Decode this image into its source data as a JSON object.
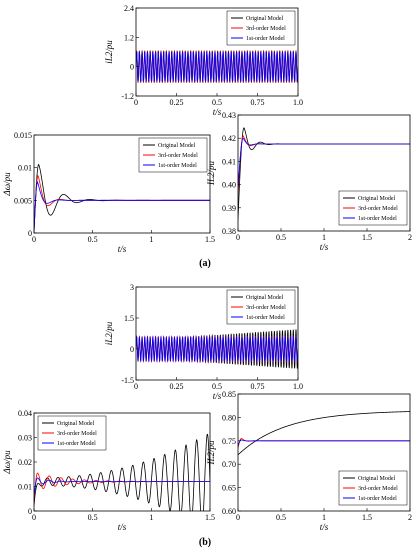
{
  "figure": {
    "label_a": "(a)",
    "label_b": "(b)"
  },
  "legend_entries": [
    "Original Model",
    "3rd-order Model",
    "1st-order Model"
  ],
  "chart_data": [
    {
      "id": "a1",
      "type": "line",
      "xlabel": "t/s",
      "ylabel": "iL2/pu",
      "xlim": [
        0,
        1
      ],
      "ylim": [
        -1.2,
        2.4
      ],
      "xticks": [
        "0",
        "0.25",
        "0.5",
        "0.75",
        "1.0"
      ],
      "yticks": [
        "-1.2",
        "0",
        "1.2",
        "2.4"
      ],
      "legend": "top-right",
      "series": [
        {
          "name": "Original Model",
          "color": "#000000",
          "signal": {
            "kind": "osc",
            "offset": 0.0,
            "amp": 0.65,
            "freq": 60,
            "decay": 0
          }
        },
        {
          "name": "3rd-order Model",
          "color": "#ff0000",
          "signal": {
            "kind": "osc",
            "offset": 0.0,
            "amp": 0.63,
            "freq": 60,
            "decay": 0
          }
        },
        {
          "name": "1st-order Model",
          "color": "#0000ff",
          "signal": {
            "kind": "osc",
            "offset": 0.0,
            "amp": 0.6,
            "freq": 60,
            "decay": 0
          }
        }
      ]
    },
    {
      "id": "a2",
      "type": "line",
      "xlabel": "t/s",
      "ylabel": "Δω/pu",
      "xlim": [
        0,
        1.5
      ],
      "ylim": [
        0,
        0.015
      ],
      "xticks": [
        "0",
        "0.5",
        "1",
        "1.5"
      ],
      "yticks": [
        "0",
        "0.005",
        "0.01",
        "0.015"
      ],
      "legend": "top-right",
      "series": [
        {
          "name": "Original Model",
          "color": "#000000",
          "signal": {
            "kind": "damp",
            "final": 0.005,
            "start": 0.0,
            "peak_t": 0.04,
            "peak": 0.0105,
            "osc_amp": 0.003,
            "osc_f": 4.5,
            "tau": 0.12
          }
        },
        {
          "name": "3rd-order Model",
          "color": "#ff0000",
          "signal": {
            "kind": "damp",
            "final": 0.005,
            "start": 0.0,
            "peak_t": 0.035,
            "peak": 0.0088,
            "osc_amp": 0.0015,
            "osc_f": 5,
            "tau": 0.06
          }
        },
        {
          "name": "1st-order Model",
          "color": "#0000ff",
          "signal": {
            "kind": "damp",
            "final": 0.005,
            "start": 0.0,
            "peak_t": 0.03,
            "peak": 0.0078,
            "osc_amp": 0.001,
            "osc_f": 5,
            "tau": 0.05
          }
        }
      ]
    },
    {
      "id": "a3",
      "type": "line",
      "xlabel": "t/s",
      "ylabel": "IL2/pu",
      "xlim": [
        0,
        2
      ],
      "ylim": [
        0.38,
        0.43
      ],
      "xticks": [
        "0",
        "0.5",
        "1",
        "1.5",
        "2"
      ],
      "yticks": [
        "0.38",
        "0.39",
        "0.40",
        "0.41",
        "0.42",
        "0.43"
      ],
      "legend": "bottom-right",
      "series": [
        {
          "name": "Original Model",
          "color": "#000000",
          "signal": {
            "kind": "damp",
            "final": 0.4175,
            "start": 0.385,
            "peak_t": 0.07,
            "peak": 0.4245,
            "osc_amp": 0.004,
            "osc_f": 5,
            "tau": 0.09
          }
        },
        {
          "name": "3rd-order Model",
          "color": "#ff0000",
          "signal": {
            "kind": "damp",
            "final": 0.4175,
            "start": 0.395,
            "peak_t": 0.06,
            "peak": 0.421,
            "osc_amp": 0.002,
            "osc_f": 5,
            "tau": 0.06
          }
        },
        {
          "name": "1st-order Model",
          "color": "#0000ff",
          "signal": {
            "kind": "damp",
            "final": 0.4175,
            "start": 0.398,
            "peak_t": 0.06,
            "peak": 0.42,
            "osc_amp": 0.0015,
            "osc_f": 5,
            "tau": 0.05
          }
        }
      ]
    },
    {
      "id": "b1",
      "type": "line",
      "xlabel": "t/s",
      "ylabel": "iL2/pu",
      "xlim": [
        0,
        1
      ],
      "ylim": [
        -1.5,
        3
      ],
      "xticks": [
        "0",
        "0.25",
        "0.5",
        "0.75",
        "1.0"
      ],
      "yticks": [
        "-1.5",
        "0",
        "1.5",
        "3"
      ],
      "legend": "top-right",
      "series": [
        {
          "name": "Original Model",
          "color": "#000000",
          "signal": {
            "kind": "osc",
            "offset": 0.0,
            "amp": 0.4,
            "freq": 60,
            "grow_to": 0.95
          }
        },
        {
          "name": "3rd-order Model",
          "color": "#ff0000",
          "signal": {
            "kind": "osc",
            "offset": 0.0,
            "amp": 0.6,
            "freq": 60,
            "decay": 0
          }
        },
        {
          "name": "1st-order Model",
          "color": "#0000ff",
          "signal": {
            "kind": "osc",
            "offset": 0.0,
            "amp": 0.58,
            "freq": 60,
            "decay": 0
          }
        }
      ]
    },
    {
      "id": "b2",
      "type": "line",
      "xlabel": "t/s",
      "ylabel": "Δω/pu",
      "xlim": [
        0,
        1.5
      ],
      "ylim": [
        0,
        0.04
      ],
      "xticks": [
        "0",
        "0.5",
        "1",
        "1.5"
      ],
      "yticks": [
        "0",
        "0.01",
        "0.02",
        "0.03",
        "0.04"
      ],
      "legend": "top-left",
      "series": [
        {
          "name": "Original Model",
          "color": "#000000",
          "signal": {
            "kind": "grow",
            "final": 0.012,
            "start": 0.002,
            "amp0": 0.0015,
            "amp1": 0.02,
            "freq": 11
          }
        },
        {
          "name": "3rd-order Model",
          "color": "#ff0000",
          "signal": {
            "kind": "damp",
            "final": 0.012,
            "start": 0.004,
            "peak_t": 0.03,
            "peak": 0.0155,
            "osc_amp": 0.002,
            "osc_f": 10,
            "tau": 0.25
          }
        },
        {
          "name": "1st-order Model",
          "color": "#0000ff",
          "signal": {
            "kind": "damp",
            "final": 0.012,
            "start": 0.006,
            "peak_t": 0.03,
            "peak": 0.0135,
            "osc_amp": 0.001,
            "osc_f": 10,
            "tau": 0.1
          }
        }
      ]
    },
    {
      "id": "b3",
      "type": "line",
      "xlabel": "t/s",
      "ylabel": "IL2/pu",
      "xlim": [
        0,
        2
      ],
      "ylim": [
        0.6,
        0.85
      ],
      "xticks": [
        "0",
        "0.5",
        "1",
        "1.5",
        "2"
      ],
      "yticks": [
        "0.60",
        "0.65",
        "0.70",
        "0.75",
        "0.80",
        "0.85"
      ],
      "legend": "bottom-right",
      "series": [
        {
          "name": "Original Model",
          "color": "#000000",
          "signal": {
            "kind": "rise",
            "start": 0.72,
            "final": 0.815,
            "tau": 0.55
          }
        },
        {
          "name": "3rd-order Model",
          "color": "#ff0000",
          "signal": {
            "kind": "damp",
            "final": 0.75,
            "start": 0.735,
            "peak_t": 0.04,
            "peak": 0.755,
            "osc_amp": 0.002,
            "osc_f": 5,
            "tau": 0.05
          }
        },
        {
          "name": "1st-order Model",
          "color": "#0000ff",
          "signal": {
            "kind": "damp",
            "final": 0.75,
            "start": 0.74,
            "peak_t": 0.04,
            "peak": 0.752,
            "osc_amp": 0.001,
            "osc_f": 5,
            "tau": 0.04
          }
        }
      ]
    }
  ]
}
